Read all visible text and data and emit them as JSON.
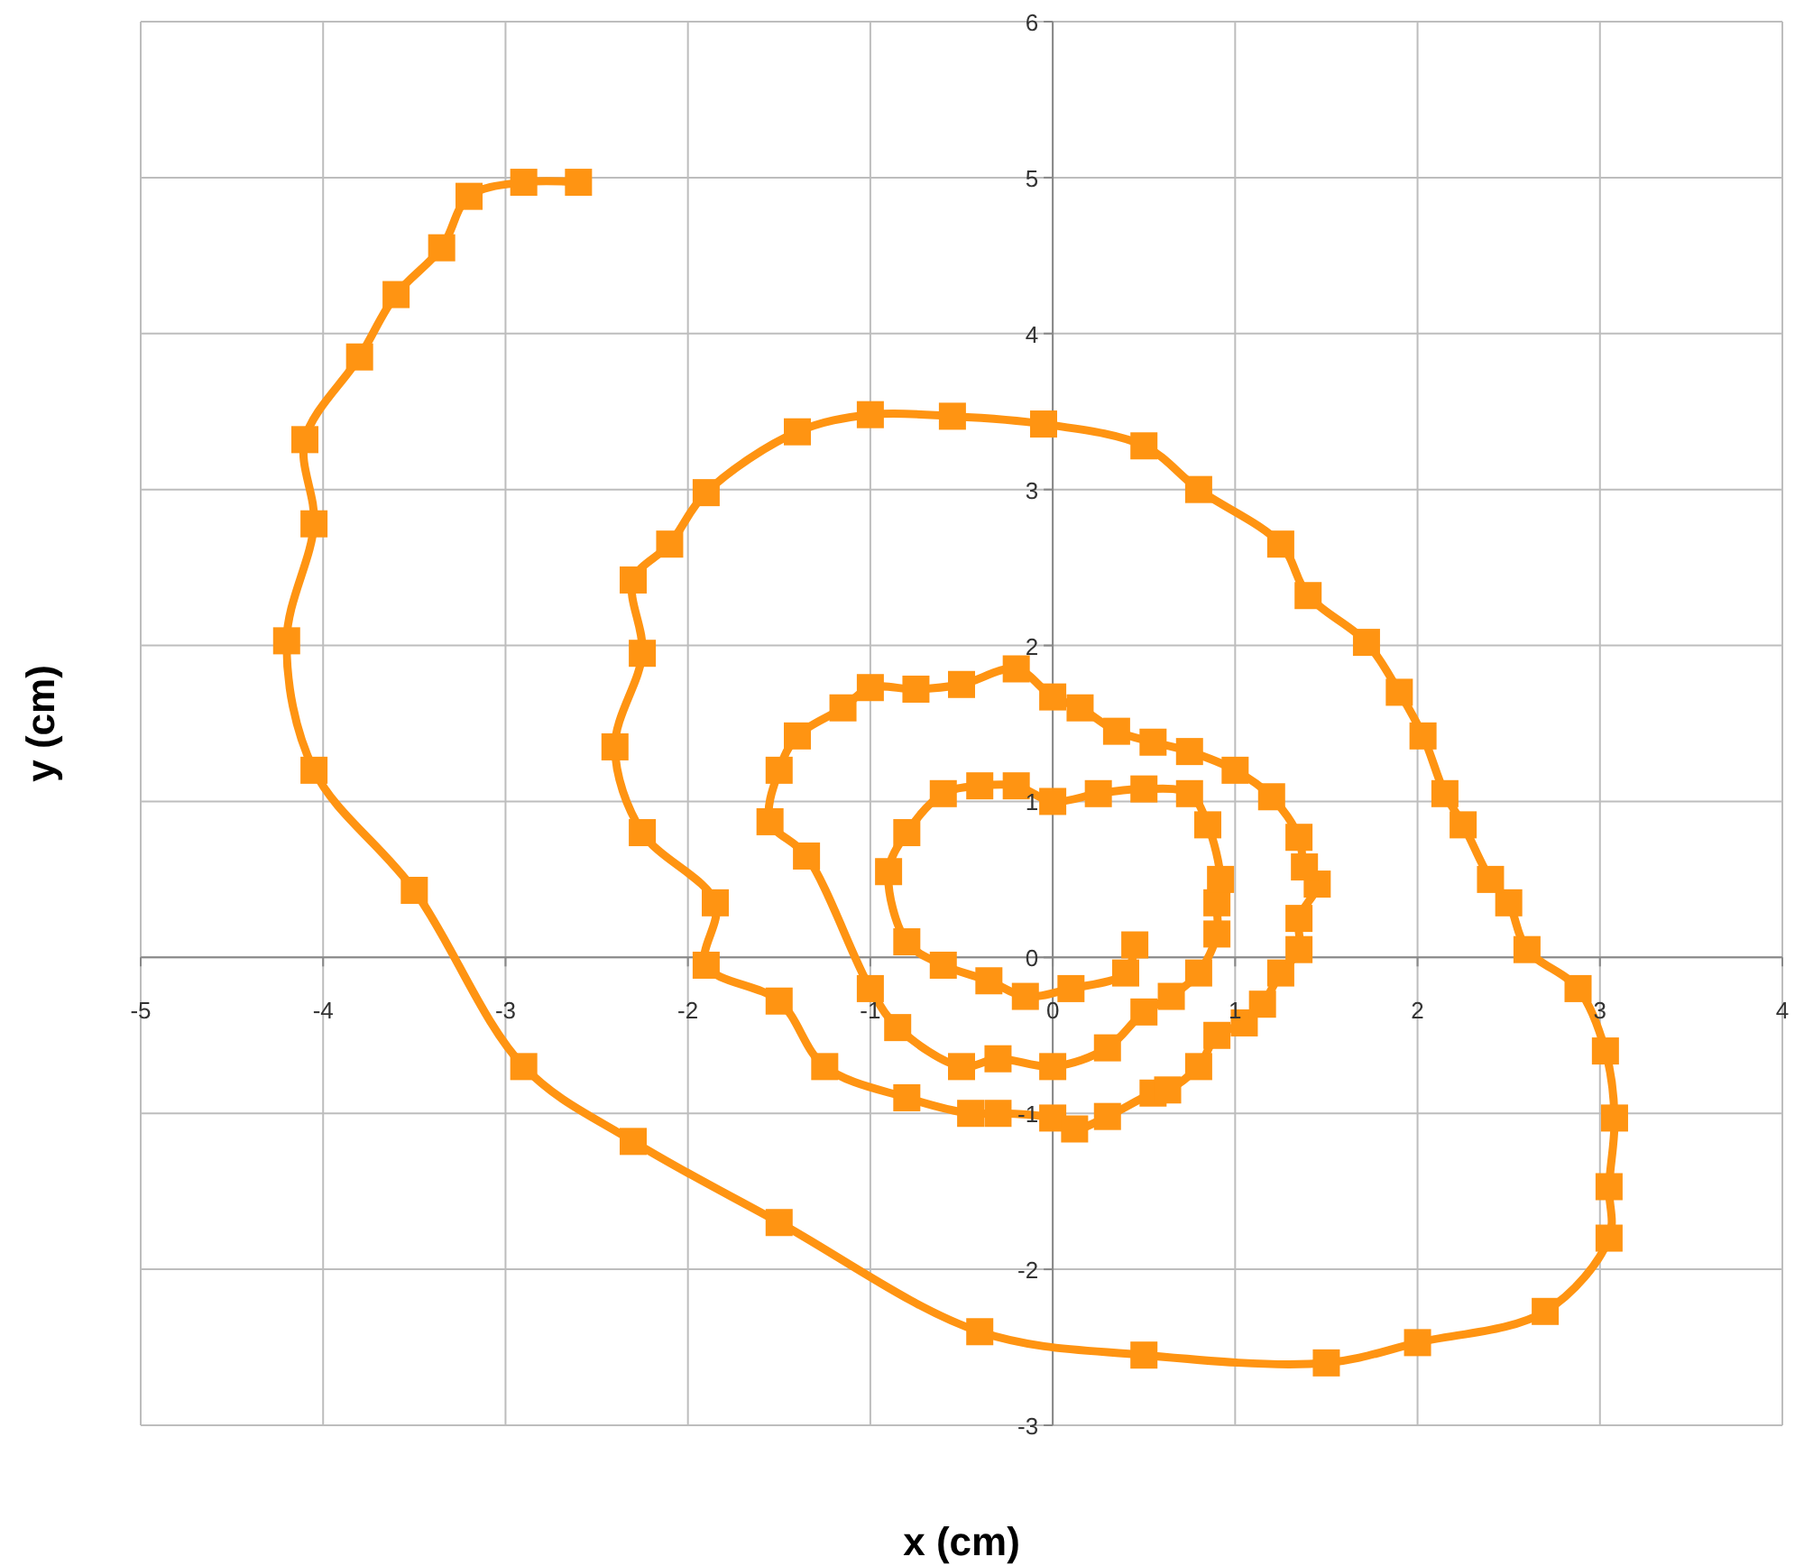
{
  "chart_data": {
    "type": "line",
    "xlabel": "x (cm)",
    "ylabel": "y (cm)",
    "marker": "square",
    "grid": true,
    "xlim": [
      -5,
      4
    ],
    "ylim": [
      -3,
      6
    ],
    "xticks": [
      -5,
      -4,
      -3,
      -2,
      -1,
      0,
      1,
      2,
      3,
      4
    ],
    "yticks": [
      -3,
      -2,
      -1,
      0,
      1,
      2,
      3,
      4,
      5,
      6
    ],
    "series": [
      {
        "color": "#ff9412",
        "x": [
          -2.6,
          -2.9,
          -3.2,
          -3.35,
          -3.6,
          -3.8,
          -4.1,
          -4.05,
          -4.2,
          -4.05,
          -3.5,
          -2.9,
          -2.3,
          -1.5,
          -0.4,
          0.5,
          1.5,
          2.0,
          2.7,
          3.05,
          3.05,
          3.08,
          3.03,
          2.88,
          2.6,
          2.5,
          2.4,
          2.25,
          2.15,
          2.03,
          1.9,
          1.72,
          1.4,
          1.25,
          0.8,
          0.5,
          -0.05,
          -0.55,
          -1.0,
          -1.4,
          -1.9,
          -2.1,
          -2.3,
          -2.25,
          -2.4,
          -2.25,
          -1.85,
          -1.9,
          -1.5,
          -1.25,
          -0.8,
          -0.45,
          -0.3,
          0.0,
          0.12,
          0.3,
          0.55,
          0.63,
          0.8,
          0.9,
          1.05,
          1.15,
          1.25,
          1.35,
          1.35,
          1.45,
          1.38,
          1.35,
          1.2,
          1.0,
          0.75,
          0.55,
          0.35,
          0.15,
          0.0,
          -0.2,
          -0.5,
          -0.75,
          -1.0,
          -1.15,
          -1.4,
          -1.5,
          -1.55,
          -1.35,
          -1.0,
          -0.85,
          -0.5,
          -0.3,
          0.0,
          0.3,
          0.5,
          0.65,
          0.8,
          0.9,
          0.9,
          0.92,
          0.85,
          0.75,
          0.5,
          0.25,
          0.0,
          -0.2,
          -0.4,
          -0.6,
          -0.8,
          -0.9,
          -0.8,
          -0.6,
          -0.35,
          -0.15,
          0.1,
          0.4,
          0.45
        ],
        "values": [
          4.97,
          4.97,
          4.88,
          4.55,
          4.25,
          3.85,
          3.32,
          2.78,
          2.03,
          1.2,
          0.43,
          -0.7,
          -1.18,
          -1.7,
          -2.4,
          -2.55,
          -2.6,
          -2.47,
          -2.27,
          -1.8,
          -1.47,
          -1.03,
          -0.6,
          -0.2,
          0.05,
          0.35,
          0.5,
          0.85,
          1.05,
          1.42,
          1.7,
          2.02,
          2.32,
          2.65,
          3.0,
          3.28,
          3.42,
          3.47,
          3.48,
          3.37,
          2.98,
          2.65,
          2.42,
          1.95,
          1.35,
          0.8,
          0.35,
          -0.05,
          -0.28,
          -0.7,
          -0.9,
          -1.0,
          -1.0,
          -1.03,
          -1.1,
          -1.02,
          -0.87,
          -0.85,
          -0.7,
          -0.5,
          -0.42,
          -0.3,
          -0.1,
          0.05,
          0.25,
          0.47,
          0.58,
          0.77,
          1.03,
          1.2,
          1.32,
          1.38,
          1.45,
          1.6,
          1.67,
          1.85,
          1.75,
          1.72,
          1.73,
          1.6,
          1.42,
          1.2,
          0.87,
          0.65,
          -0.2,
          -0.45,
          -0.7,
          -0.65,
          -0.7,
          -0.58,
          -0.35,
          -0.25,
          -0.1,
          0.15,
          0.35,
          0.5,
          0.85,
          1.05,
          1.08,
          1.05,
          1.0,
          1.1,
          1.1,
          1.05,
          0.8,
          0.55,
          0.1,
          -0.05,
          -0.15,
          -0.25,
          -0.2,
          -0.1,
          0.08
        ]
      }
    ]
  }
}
